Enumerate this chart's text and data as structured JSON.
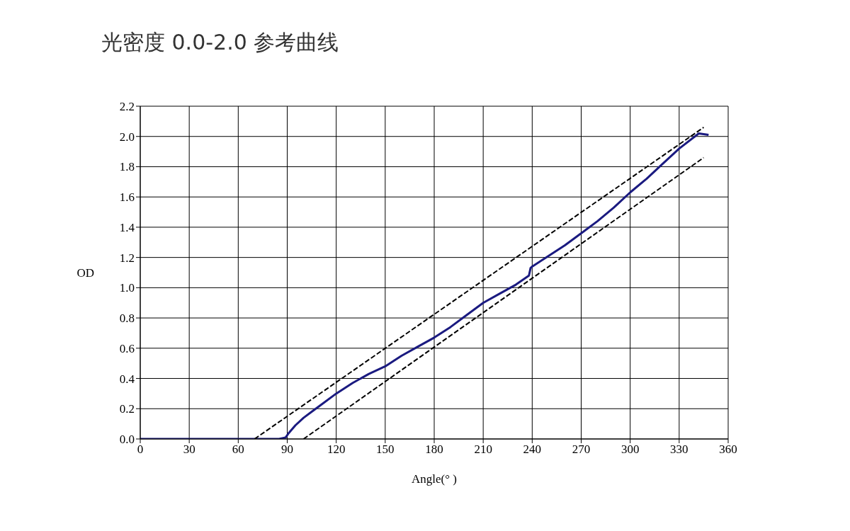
{
  "chart_data": {
    "type": "line",
    "title": "光密度 0.0-2.0 参考曲线",
    "xlabel": "Angle(° )",
    "ylabel": "OD",
    "xlim": [
      0,
      360
    ],
    "xticks": [
      0,
      30,
      60,
      90,
      120,
      150,
      180,
      210,
      240,
      270,
      300,
      330,
      360
    ],
    "ylim": [
      0,
      2.2
    ],
    "yticks": [
      {
        "value": 0,
        "label": "0.0"
      },
      {
        "value": 0.2,
        "label": "0.2"
      },
      {
        "value": 0.4,
        "label": "0.4"
      },
      {
        "value": 0.6,
        "label": "0.6"
      },
      {
        "value": 0.8,
        "label": "0.8"
      },
      {
        "value": 1,
        "label": "1.0"
      },
      {
        "value": 1.2,
        "label": "1.2"
      },
      {
        "value": 1.4,
        "label": "1.4"
      },
      {
        "value": 1.6,
        "label": "1.6"
      },
      {
        "value": 1.8,
        "label": "1.8"
      },
      {
        "value": 2,
        "label": "2.0"
      },
      {
        "value": 2.2,
        "label": "2.2"
      }
    ],
    "grid": true,
    "marker": "none",
    "series": [
      {
        "color": "#1a1a80",
        "line_style": "solid",
        "x": [
          0,
          30,
          60,
          85,
          89,
          91,
          95,
          100,
          105,
          110,
          120,
          130,
          140,
          150,
          160,
          170,
          180,
          190,
          200,
          210,
          220,
          230,
          238,
          239,
          240,
          250,
          260,
          270,
          280,
          290,
          300,
          310,
          320,
          330,
          342,
          348
        ],
        "values": [
          0,
          0,
          0,
          0,
          0.01,
          0.04,
          0.09,
          0.14,
          0.18,
          0.22,
          0.3,
          0.37,
          0.43,
          0.48,
          0.55,
          0.61,
          0.67,
          0.74,
          0.82,
          0.9,
          0.96,
          1.02,
          1.08,
          1.13,
          1.14,
          1.21,
          1.28,
          1.36,
          1.44,
          1.53,
          1.63,
          1.72,
          1.82,
          1.92,
          2.02,
          2.01
        ]
      },
      {
        "color": "#000000",
        "line_style": "dashed",
        "x": [
          70,
          345
        ],
        "values": [
          0,
          2.06
        ]
      },
      {
        "color": "#000000",
        "line_style": "dashed",
        "x": [
          100,
          345
        ],
        "values": [
          0,
          1.86
        ]
      }
    ]
  }
}
